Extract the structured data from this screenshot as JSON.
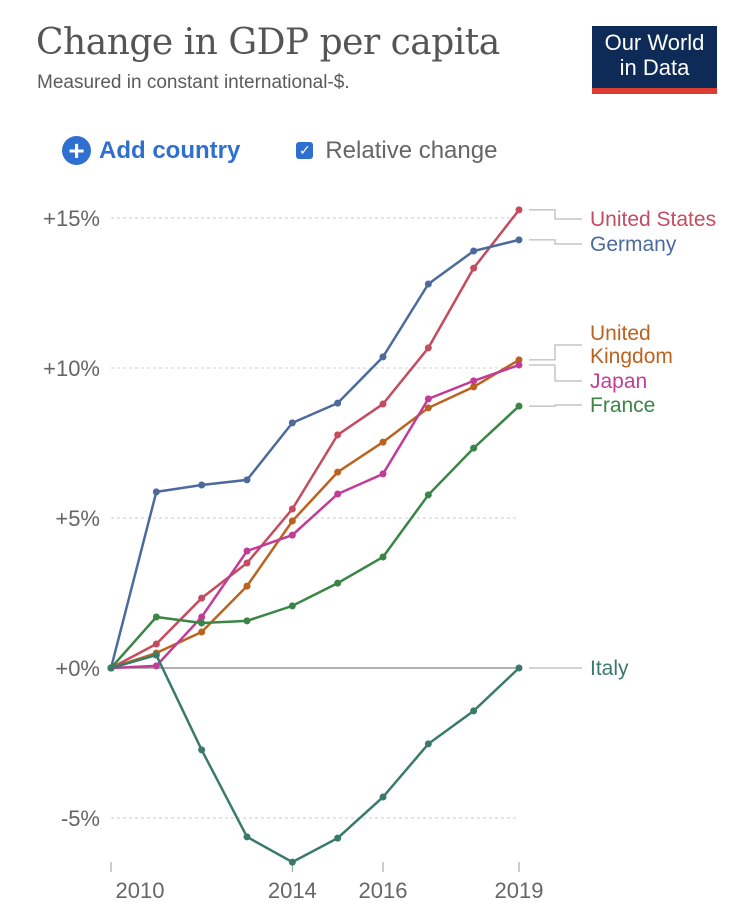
{
  "header": {
    "title": "Change in GDP per capita",
    "subtitle": "Measured in constant international-$.",
    "logo": "Our World in Data",
    "logo_line1": "Our World",
    "logo_line2": "in Data"
  },
  "controls": {
    "add_country": "Add country",
    "relative_change": "Relative change",
    "relative_checked": true
  },
  "chart_data": {
    "type": "line",
    "title": "Change in GDP per capita",
    "subtitle": "Measured in constant international-$.",
    "x": [
      2010,
      2011,
      2012,
      2013,
      2014,
      2015,
      2016,
      2017,
      2018,
      2019
    ],
    "xticks": [
      {
        "value": 2010,
        "label": "2010"
      },
      {
        "value": 2014,
        "label": "2014"
      },
      {
        "value": 2016,
        "label": "2016"
      },
      {
        "value": 2019,
        "label": "2019"
      }
    ],
    "yticks": [
      {
        "value": 15,
        "label": "+15%"
      },
      {
        "value": 10,
        "label": "+10%"
      },
      {
        "value": 5,
        "label": "+5%"
      },
      {
        "value": 0,
        "label": "+0%"
      },
      {
        "value": -5,
        "label": "-5%"
      }
    ],
    "ylim": [
      -6.5,
      15.3
    ],
    "xlim": [
      2010,
      2019
    ],
    "grid": true,
    "legend": "right, inline labels",
    "series": [
      {
        "name": "United States",
        "label_lines": [
          "United States"
        ],
        "color": "#c44c5f",
        "values": [
          0,
          0.8,
          2.33,
          3.5,
          5.3,
          7.77,
          8.8,
          10.67,
          13.33,
          15.27
        ]
      },
      {
        "name": "Germany",
        "label_lines": [
          "Germany"
        ],
        "color": "#4c6a9c",
        "values": [
          0,
          5.87,
          6.1,
          6.27,
          8.17,
          8.83,
          10.37,
          12.8,
          13.9,
          14.27
        ]
      },
      {
        "name": "United Kingdom",
        "label_lines": [
          "United",
          "Kingdom"
        ],
        "color": "#bc621f",
        "values": [
          0,
          0.5,
          1.2,
          2.73,
          4.9,
          6.53,
          7.53,
          8.67,
          9.37,
          10.27
        ]
      },
      {
        "name": "Japan",
        "label_lines": [
          "Japan"
        ],
        "color": "#c13c97",
        "values": [
          0,
          0.07,
          1.7,
          3.9,
          4.43,
          5.8,
          6.47,
          8.97,
          9.57,
          10.1
        ]
      },
      {
        "name": "France",
        "label_lines": [
          "France"
        ],
        "color": "#3b8546",
        "values": [
          0,
          1.7,
          1.5,
          1.57,
          2.07,
          2.83,
          3.7,
          5.77,
          7.33,
          8.73
        ]
      },
      {
        "name": "Italy",
        "label_lines": [
          "Italy"
        ],
        "color": "#3a7a6a",
        "values": [
          0,
          0.43,
          -2.73,
          -5.63,
          -6.47,
          -5.67,
          -4.3,
          -2.53,
          -1.43,
          0
        ]
      }
    ]
  }
}
